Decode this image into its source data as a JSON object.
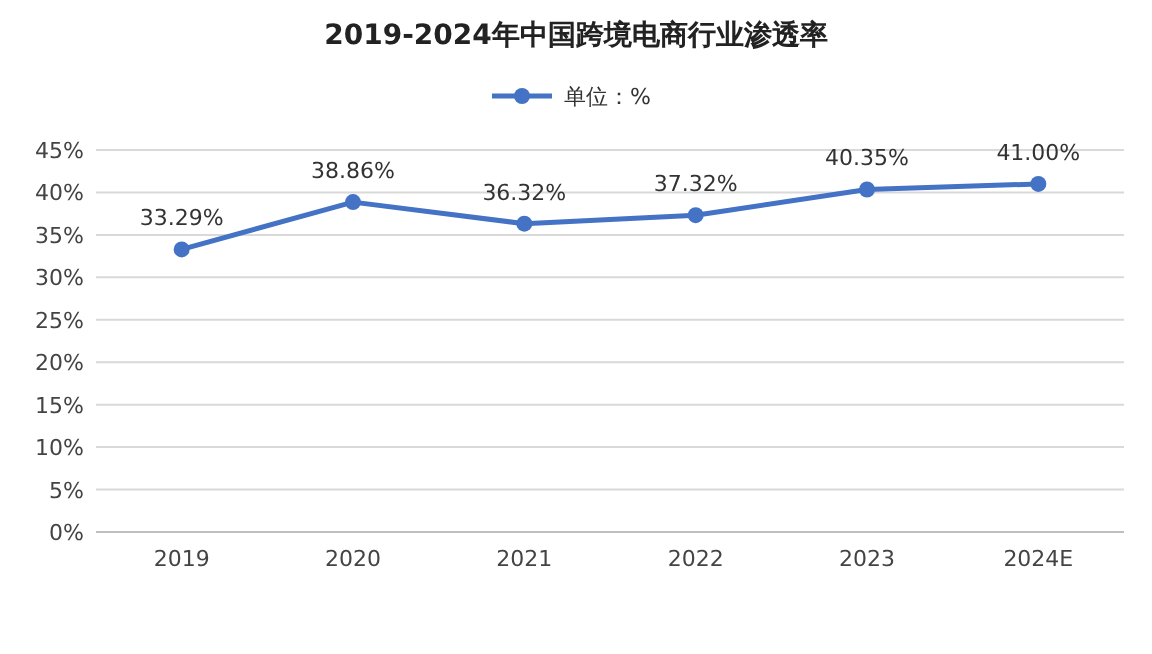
{
  "chart_data": {
    "type": "line",
    "title": "2019-2024年中国跨境电商行业渗透率",
    "categories": [
      "2019",
      "2020",
      "2021",
      "2022",
      "2023",
      "2024E"
    ],
    "series": [
      {
        "name": "单位：%",
        "color": "#4472c4",
        "values": [
          33.29,
          38.86,
          36.32,
          37.32,
          40.35,
          41.0
        ],
        "value_labels": [
          "33.29%",
          "38.86%",
          "36.32%",
          "37.32%",
          "40.35%",
          "41.00%"
        ]
      }
    ],
    "ylim": [
      0,
      45
    ],
    "yticks": [
      {
        "value": 0,
        "label": "0%"
      },
      {
        "value": 5,
        "label": "5%"
      },
      {
        "value": 10,
        "label": "10%"
      },
      {
        "value": 15,
        "label": "15%"
      },
      {
        "value": 20,
        "label": "20%"
      },
      {
        "value": 25,
        "label": "25%"
      },
      {
        "value": 30,
        "label": "30%"
      },
      {
        "value": 35,
        "label": "35%"
      },
      {
        "value": 40,
        "label": "40%"
      },
      {
        "value": 45,
        "label": "45%"
      }
    ],
    "grid": "y",
    "legend": "top",
    "marker": "circle",
    "line_style": "solid"
  }
}
